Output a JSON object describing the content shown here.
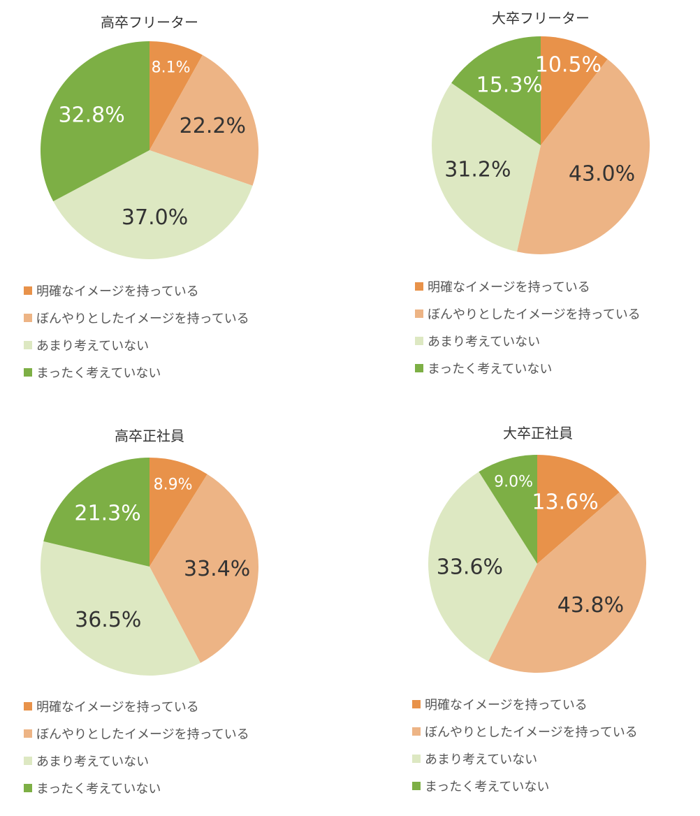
{
  "legend_labels": [
    "明確なイメージを持っている",
    "ぼんやりとしたイメージを持っている",
    "あまり考えていない",
    "まったく考えていない"
  ],
  "colors": [
    "#e8924a",
    "#edb485",
    "#dde8c2",
    "#7daf45"
  ],
  "label_colors": [
    "#ffffff",
    "#333333",
    "#333333",
    "#ffffff"
  ],
  "chart_data": [
    {
      "type": "pie",
      "title": "高卒フリーター",
      "labels": [
        "明確なイメージを持っている",
        "ぼんやりとしたイメージを持っている",
        "あまり考えていない",
        "まったく考えていない"
      ],
      "values": [
        8.1,
        22.2,
        37.0,
        32.8
      ],
      "value_labels": [
        "8.1%",
        "22.2%",
        "37.0%",
        "32.8%"
      ]
    },
    {
      "type": "pie",
      "title": "大卒フリーター",
      "labels": [
        "明確なイメージを持っている",
        "ぼんやりとしたイメージを持っている",
        "あまり考えていない",
        "まったく考えていない"
      ],
      "values": [
        10.5,
        43.0,
        31.2,
        15.3
      ],
      "value_labels": [
        "10.5%",
        "43.0%",
        "31.2%",
        "15.3%"
      ]
    },
    {
      "type": "pie",
      "title": "高卒正社員",
      "labels": [
        "明確なイメージを持っている",
        "ぼんやりとしたイメージを持っている",
        "あまり考えていない",
        "まったく考えていない"
      ],
      "values": [
        8.9,
        33.4,
        36.5,
        21.3
      ],
      "value_labels": [
        "8.9%",
        "33.4%",
        "36.5%",
        "21.3%"
      ]
    },
    {
      "type": "pie",
      "title": "大卒正社員",
      "labels": [
        "明確なイメージを持っている",
        "ぼんやりとしたイメージを持っている",
        "あまり考えていない",
        "まったく考えていない"
      ],
      "values": [
        13.6,
        43.8,
        33.6,
        9.0
      ],
      "value_labels": [
        "13.6%",
        "43.8%",
        "33.6%",
        "9.0%"
      ]
    }
  ]
}
